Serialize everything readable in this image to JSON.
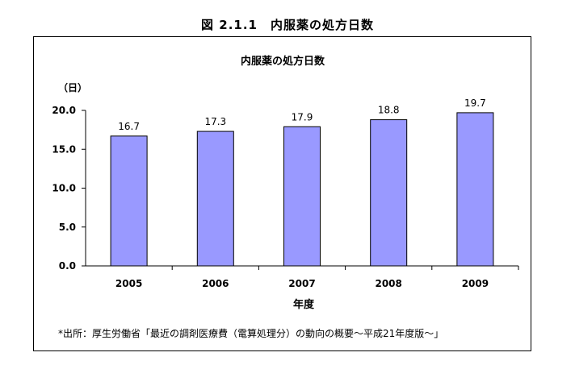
{
  "figure_label": "図 2.1.1　内服薬の処方日数",
  "source_note": "*出所：厚生労働省「最近の調剤医療費（電算処理分）の動向の概要～平成21年度版～」",
  "chart_data": {
    "type": "bar",
    "title": "内服薬の処方日数",
    "xlabel": "年度",
    "ylabel": "（日）",
    "categories": [
      "2005",
      "2006",
      "2007",
      "2008",
      "2009"
    ],
    "values": [
      16.7,
      17.3,
      17.9,
      18.8,
      19.7
    ],
    "value_labels": [
      "16.7",
      "17.3",
      "17.9",
      "18.8",
      "19.7"
    ],
    "ylim": [
      0,
      20
    ],
    "yticks": [
      0,
      5,
      10,
      15,
      20
    ],
    "ytick_labels": [
      "0.0",
      "5.0",
      "10.0",
      "15.0",
      "20.0"
    ],
    "grid": false,
    "legend": "none",
    "bar_color": "#9999ff",
    "bar_edge_color": "#000000"
  }
}
